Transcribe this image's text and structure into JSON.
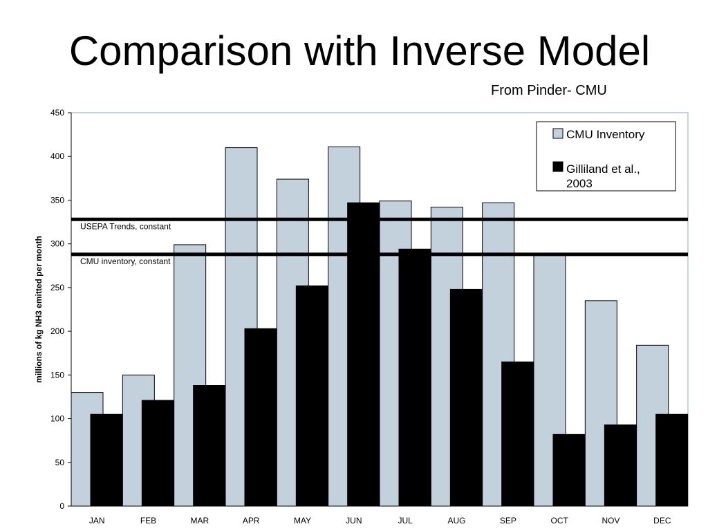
{
  "header": {
    "title": "Comparison with Inverse Model",
    "source": "From Pinder- CMU"
  },
  "chart_data": {
    "type": "bar",
    "title": "",
    "xlabel": "",
    "ylabel": "millions of kg NH3 emitted per month",
    "ylim": [
      0,
      450
    ],
    "yticks": [
      0,
      50,
      100,
      150,
      200,
      250,
      300,
      350,
      400,
      450
    ],
    "categories": [
      "JAN",
      "FEB",
      "MAR",
      "APR",
      "MAY",
      "JUN",
      "JUL",
      "AUG",
      "SEP",
      "OCT",
      "NOV",
      "DEC"
    ],
    "series": [
      {
        "name": "CMU Inventory",
        "color": "#c2d1db",
        "values": [
          130,
          150,
          299,
          410,
          374,
          411,
          349,
          342,
          347,
          288,
          235,
          184
        ]
      },
      {
        "name": "Gilliland et al., 2003",
        "color": "#000000",
        "values": [
          105,
          121,
          138,
          203,
          252,
          347,
          294,
          248,
          165,
          82,
          93,
          105
        ]
      }
    ],
    "reference_lines": [
      {
        "label": "USEPA Trends, constant",
        "value": 328
      },
      {
        "label": "CMU inventory, constant",
        "value": 288
      }
    ],
    "grid": false,
    "legend": {
      "position": "top-right",
      "entries": [
        {
          "text": "CMU Inventory",
          "color": "#c2d1db"
        },
        {
          "text_lines": [
            "Gilliland et al.,",
            "2003"
          ],
          "color": "#000000"
        }
      ]
    }
  }
}
